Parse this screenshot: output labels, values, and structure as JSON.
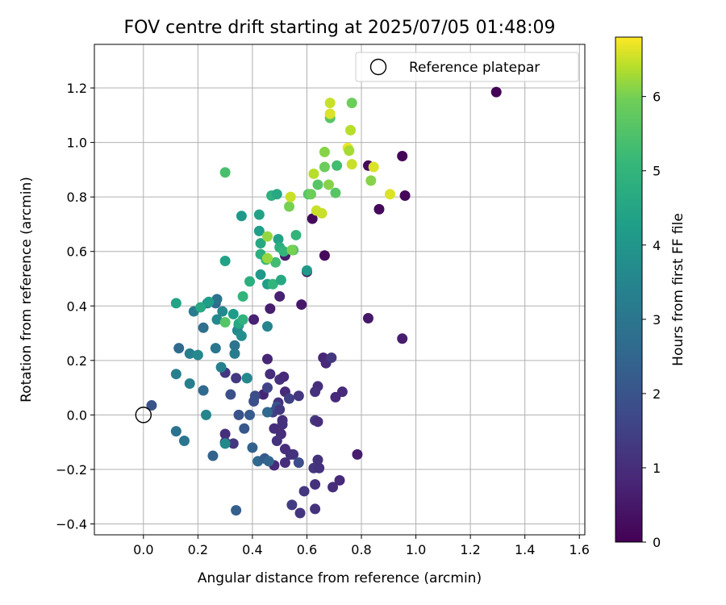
{
  "chart_data": {
    "type": "scatter",
    "title": "FOV centre drift starting at 2025/07/05 01:48:09",
    "xlabel": "Angular distance from reference (arcmin)",
    "ylabel": "Rotation from reference (arcmin)",
    "xlim": [
      -0.18,
      1.62
    ],
    "ylim": [
      -0.44,
      1.36
    ],
    "x_ticks": [
      0.0,
      0.2,
      0.4,
      0.6,
      0.8,
      1.0,
      1.2,
      1.4,
      1.6
    ],
    "x_tick_labels": [
      "0.0",
      "0.2",
      "0.4",
      "0.6",
      "0.8",
      "1.0",
      "1.2",
      "1.4",
      "1.6"
    ],
    "y_ticks": [
      -0.4,
      -0.2,
      0.0,
      0.2,
      0.4,
      0.6,
      0.8,
      1.0,
      1.2
    ],
    "y_tick_labels": [
      "−0.4",
      "−0.2",
      "0.0",
      "0.2",
      "0.4",
      "0.6",
      "0.8",
      "1.0",
      "1.2"
    ],
    "grid": true,
    "legend": {
      "position": "upper-right",
      "entries": [
        "Reference platepar"
      ]
    },
    "reference_point": {
      "x": 0.0,
      "y": 0.0,
      "label": "Reference platepar"
    },
    "colorbar": {
      "label": "Hours from first FF file",
      "colormap": "viridis",
      "range": [
        0,
        6.8
      ],
      "ticks": [
        0,
        1,
        2,
        3,
        4,
        5,
        6
      ],
      "tick_labels": [
        "0",
        "1",
        "2",
        "3",
        "4",
        "5",
        "6"
      ]
    },
    "points": [
      {
        "x": 1.295,
        "y": 1.185,
        "t": 0.05
      },
      {
        "x": 0.95,
        "y": 0.95,
        "t": 0.1
      },
      {
        "x": 0.96,
        "y": 0.805,
        "t": 0.1
      },
      {
        "x": 0.865,
        "y": 0.755,
        "t": 0.2
      },
      {
        "x": 0.825,
        "y": 0.915,
        "t": 0.15
      },
      {
        "x": 0.62,
        "y": 0.72,
        "t": 0.2
      },
      {
        "x": 0.665,
        "y": 0.585,
        "t": 0.2
      },
      {
        "x": 0.6,
        "y": 0.525,
        "t": 0.3
      },
      {
        "x": 0.825,
        "y": 0.355,
        "t": 0.5
      },
      {
        "x": 0.95,
        "y": 0.28,
        "t": 0.6
      },
      {
        "x": 0.58,
        "y": 0.405,
        "t": 0.5
      },
      {
        "x": 0.465,
        "y": 0.39,
        "t": 0.6
      },
      {
        "x": 0.5,
        "y": 0.435,
        "t": 0.7
      },
      {
        "x": 0.52,
        "y": 0.585,
        "t": 0.6
      },
      {
        "x": 0.405,
        "y": 0.35,
        "t": 0.7
      },
      {
        "x": 0.455,
        "y": 0.205,
        "t": 0.8
      },
      {
        "x": 0.66,
        "y": 0.21,
        "t": 0.8
      },
      {
        "x": 0.67,
        "y": 0.19,
        "t": 0.9
      },
      {
        "x": 0.69,
        "y": 0.21,
        "t": 1.2
      },
      {
        "x": 0.465,
        "y": 0.15,
        "t": 1.0
      },
      {
        "x": 0.5,
        "y": 0.13,
        "t": 1.1
      },
      {
        "x": 0.515,
        "y": 0.14,
        "t": 0.9
      },
      {
        "x": 0.64,
        "y": 0.105,
        "t": 1.0
      },
      {
        "x": 0.63,
        "y": 0.085,
        "t": 1.1
      },
      {
        "x": 0.73,
        "y": 0.085,
        "t": 0.9
      },
      {
        "x": 0.705,
        "y": 0.065,
        "t": 0.9
      },
      {
        "x": 0.44,
        "y": 0.075,
        "t": 0.8
      },
      {
        "x": 0.52,
        "y": 0.085,
        "t": 0.9
      },
      {
        "x": 0.535,
        "y": 0.06,
        "t": 1.5
      },
      {
        "x": 0.57,
        "y": 0.07,
        "t": 1.2
      },
      {
        "x": 0.455,
        "y": 0.1,
        "t": 1.6
      },
      {
        "x": 0.41,
        "y": 0.07,
        "t": 1.8
      },
      {
        "x": 0.405,
        "y": 0.05,
        "t": 1.9
      },
      {
        "x": 0.495,
        "y": 0.045,
        "t": 1.1
      },
      {
        "x": 0.475,
        "y": 0.01,
        "t": 1.5
      },
      {
        "x": 0.49,
        "y": 0.03,
        "t": 2.0
      },
      {
        "x": 0.5,
        "y": 0.02,
        "t": 1.3
      },
      {
        "x": 0.51,
        "y": -0.02,
        "t": 1.0
      },
      {
        "x": 0.51,
        "y": -0.035,
        "t": 1.1
      },
      {
        "x": 0.48,
        "y": -0.05,
        "t": 1.0
      },
      {
        "x": 0.505,
        "y": -0.07,
        "t": 1.0
      },
      {
        "x": 0.49,
        "y": -0.095,
        "t": 1.1
      },
      {
        "x": 0.63,
        "y": -0.02,
        "t": 1.3
      },
      {
        "x": 0.64,
        "y": -0.025,
        "t": 1.0
      },
      {
        "x": 0.52,
        "y": -0.125,
        "t": 1.0
      },
      {
        "x": 0.54,
        "y": -0.145,
        "t": 1.0
      },
      {
        "x": 0.55,
        "y": -0.145,
        "t": 1.1
      },
      {
        "x": 0.48,
        "y": -0.185,
        "t": 0.9
      },
      {
        "x": 0.52,
        "y": -0.175,
        "t": 1.0
      },
      {
        "x": 0.57,
        "y": -0.175,
        "t": 1.8
      },
      {
        "x": 0.625,
        "y": -0.195,
        "t": 1.2
      },
      {
        "x": 0.64,
        "y": -0.165,
        "t": 1.1
      },
      {
        "x": 0.645,
        "y": -0.195,
        "t": 1.1
      },
      {
        "x": 0.785,
        "y": -0.145,
        "t": 0.6
      },
      {
        "x": 0.72,
        "y": -0.24,
        "t": 0.9
      },
      {
        "x": 0.695,
        "y": -0.265,
        "t": 1.0
      },
      {
        "x": 0.63,
        "y": -0.255,
        "t": 1.1
      },
      {
        "x": 0.59,
        "y": -0.28,
        "t": 1.2
      },
      {
        "x": 0.545,
        "y": -0.33,
        "t": 1.4
      },
      {
        "x": 0.575,
        "y": -0.36,
        "t": 1.2
      },
      {
        "x": 0.63,
        "y": -0.345,
        "t": 1.1
      },
      {
        "x": 0.34,
        "y": -0.35,
        "t": 2.3
      },
      {
        "x": 0.3,
        "y": -0.07,
        "t": 1.0
      },
      {
        "x": 0.3,
        "y": -0.1,
        "t": 1.2
      },
      {
        "x": 0.33,
        "y": -0.105,
        "t": 1.2
      },
      {
        "x": 0.37,
        "y": -0.05,
        "t": 2.1
      },
      {
        "x": 0.35,
        "y": 0.0,
        "t": 2.0
      },
      {
        "x": 0.39,
        "y": 0.0,
        "t": 2.2
      },
      {
        "x": 0.32,
        "y": 0.075,
        "t": 1.9
      },
      {
        "x": 0.3,
        "y": 0.155,
        "t": 1.2
      },
      {
        "x": 0.34,
        "y": 0.135,
        "t": 1.3
      },
      {
        "x": 0.38,
        "y": 0.135,
        "t": 1.6
      },
      {
        "x": 0.4,
        "y": -0.12,
        "t": 2.4
      },
      {
        "x": 0.42,
        "y": -0.17,
        "t": 2.6
      },
      {
        "x": 0.445,
        "y": -0.16,
        "t": 2.2
      },
      {
        "x": 0.46,
        "y": -0.17,
        "t": 2.5
      },
      {
        "x": 0.455,
        "y": 0.01,
        "t": 2.6
      },
      {
        "x": 0.03,
        "y": 0.035,
        "t": 2.0
      },
      {
        "x": 0.12,
        "y": -0.06,
        "t": 2.9
      },
      {
        "x": 0.15,
        "y": -0.095,
        "t": 3.0
      },
      {
        "x": 0.255,
        "y": -0.15,
        "t": 2.4
      },
      {
        "x": 0.3,
        "y": -0.105,
        "t": 3.6
      },
      {
        "x": 0.22,
        "y": 0.09,
        "t": 2.6
      },
      {
        "x": 0.23,
        "y": 0.0,
        "t": 3.5
      },
      {
        "x": 0.12,
        "y": 0.15,
        "t": 3.3
      },
      {
        "x": 0.13,
        "y": 0.245,
        "t": 2.6
      },
      {
        "x": 0.17,
        "y": 0.225,
        "t": 3.3
      },
      {
        "x": 0.2,
        "y": 0.22,
        "t": 3.6
      },
      {
        "x": 0.17,
        "y": 0.115,
        "t": 3.3
      },
      {
        "x": 0.265,
        "y": 0.245,
        "t": 3.0
      },
      {
        "x": 0.285,
        "y": 0.175,
        "t": 3.3
      },
      {
        "x": 0.335,
        "y": 0.225,
        "t": 3.2
      },
      {
        "x": 0.335,
        "y": 0.255,
        "t": 3.0
      },
      {
        "x": 0.38,
        "y": 0.135,
        "t": 3.6
      },
      {
        "x": 0.22,
        "y": 0.32,
        "t": 2.8
      },
      {
        "x": 0.235,
        "y": 0.41,
        "t": 3.2
      },
      {
        "x": 0.265,
        "y": 0.41,
        "t": 2.6
      },
      {
        "x": 0.27,
        "y": 0.425,
        "t": 2.9
      },
      {
        "x": 0.185,
        "y": 0.38,
        "t": 3.2
      },
      {
        "x": 0.27,
        "y": 0.35,
        "t": 3.6
      },
      {
        "x": 0.35,
        "y": 0.33,
        "t": 3.0
      },
      {
        "x": 0.345,
        "y": 0.31,
        "t": 3.6
      },
      {
        "x": 0.36,
        "y": 0.29,
        "t": 3.8
      },
      {
        "x": 0.33,
        "y": 0.37,
        "t": 4.2
      },
      {
        "x": 0.29,
        "y": 0.38,
        "t": 3.6
      },
      {
        "x": 0.455,
        "y": 0.325,
        "t": 3.5
      },
      {
        "x": 0.12,
        "y": 0.41,
        "t": 4.4
      },
      {
        "x": 0.21,
        "y": 0.395,
        "t": 4.6
      },
      {
        "x": 0.24,
        "y": 0.415,
        "t": 4.3
      },
      {
        "x": 0.35,
        "y": 0.335,
        "t": 4.6
      },
      {
        "x": 0.365,
        "y": 0.35,
        "t": 4.9
      },
      {
        "x": 0.3,
        "y": 0.34,
        "t": 5.6
      },
      {
        "x": 0.3,
        "y": 0.565,
        "t": 4.4
      },
      {
        "x": 0.365,
        "y": 0.435,
        "t": 5.0
      },
      {
        "x": 0.39,
        "y": 0.49,
        "t": 4.8
      },
      {
        "x": 0.43,
        "y": 0.515,
        "t": 4.1
      },
      {
        "x": 0.455,
        "y": 0.48,
        "t": 4.3
      },
      {
        "x": 0.475,
        "y": 0.48,
        "t": 5.0
      },
      {
        "x": 0.505,
        "y": 0.495,
        "t": 4.6
      },
      {
        "x": 0.36,
        "y": 0.73,
        "t": 4.1
      },
      {
        "x": 0.425,
        "y": 0.735,
        "t": 4.4
      },
      {
        "x": 0.425,
        "y": 0.675,
        "t": 4.3
      },
      {
        "x": 0.43,
        "y": 0.63,
        "t": 4.6
      },
      {
        "x": 0.43,
        "y": 0.59,
        "t": 4.8
      },
      {
        "x": 0.45,
        "y": 0.57,
        "t": 5.1
      },
      {
        "x": 0.485,
        "y": 0.56,
        "t": 5.3
      },
      {
        "x": 0.495,
        "y": 0.645,
        "t": 4.4
      },
      {
        "x": 0.5,
        "y": 0.615,
        "t": 4.8
      },
      {
        "x": 0.515,
        "y": 0.6,
        "t": 5.0
      },
      {
        "x": 0.55,
        "y": 0.605,
        "t": 5.3
      },
      {
        "x": 0.56,
        "y": 0.66,
        "t": 5.0
      },
      {
        "x": 0.6,
        "y": 0.53,
        "t": 4.1
      },
      {
        "x": 0.3,
        "y": 0.89,
        "t": 5.4
      },
      {
        "x": 0.47,
        "y": 0.805,
        "t": 4.9
      },
      {
        "x": 0.49,
        "y": 0.81,
        "t": 4.6
      },
      {
        "x": 0.455,
        "y": 0.655,
        "t": 6.2
      },
      {
        "x": 0.455,
        "y": 0.575,
        "t": 6.2
      },
      {
        "x": 0.535,
        "y": 0.765,
        "t": 6.0
      },
      {
        "x": 0.54,
        "y": 0.8,
        "t": 6.5
      },
      {
        "x": 0.545,
        "y": 0.605,
        "t": 6.0
      },
      {
        "x": 0.605,
        "y": 0.81,
        "t": 5.6
      },
      {
        "x": 0.615,
        "y": 0.81,
        "t": 5.9
      },
      {
        "x": 0.64,
        "y": 0.845,
        "t": 5.6
      },
      {
        "x": 0.665,
        "y": 0.91,
        "t": 5.9
      },
      {
        "x": 0.68,
        "y": 0.845,
        "t": 6.1
      },
      {
        "x": 0.705,
        "y": 0.815,
        "t": 5.6
      },
      {
        "x": 0.71,
        "y": 0.915,
        "t": 5.3
      },
      {
        "x": 0.625,
        "y": 0.885,
        "t": 6.4
      },
      {
        "x": 0.635,
        "y": 0.75,
        "t": 6.5
      },
      {
        "x": 0.655,
        "y": 0.74,
        "t": 6.5
      },
      {
        "x": 0.665,
        "y": 0.965,
        "t": 6.1
      },
      {
        "x": 0.685,
        "y": 1.09,
        "t": 5.6
      },
      {
        "x": 0.685,
        "y": 1.105,
        "t": 6.6
      },
      {
        "x": 0.685,
        "y": 1.145,
        "t": 6.5
      },
      {
        "x": 0.765,
        "y": 1.145,
        "t": 5.9
      },
      {
        "x": 0.75,
        "y": 0.98,
        "t": 6.7
      },
      {
        "x": 0.755,
        "y": 0.97,
        "t": 6.3
      },
      {
        "x": 0.76,
        "y": 1.045,
        "t": 6.4
      },
      {
        "x": 0.765,
        "y": 0.92,
        "t": 6.5
      },
      {
        "x": 0.835,
        "y": 0.86,
        "t": 6.1
      },
      {
        "x": 0.845,
        "y": 0.91,
        "t": 6.6
      },
      {
        "x": 0.905,
        "y": 0.81,
        "t": 6.6
      }
    ]
  }
}
